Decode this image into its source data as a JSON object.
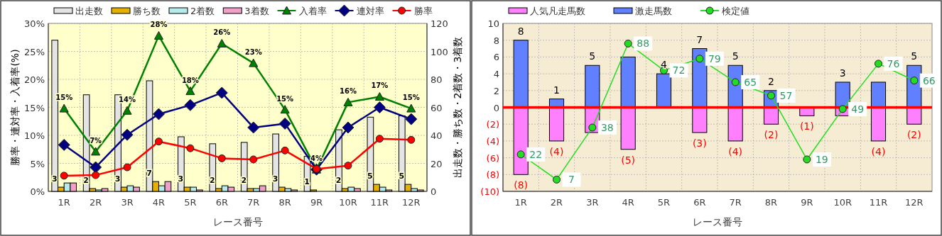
{
  "chart_data": [
    {
      "type": "bar",
      "xlabel": "レース番号",
      "ylabel": "勝率・連対率・入着率(%)",
      "y2label": "出走数・勝ち数・2着数・3着数",
      "categories": [
        "1R",
        "2R",
        "3R",
        "4R",
        "5R",
        "6R",
        "7R",
        "8R",
        "9R",
        "10R",
        "11R",
        "12R"
      ],
      "ylim": [
        0,
        30
      ],
      "yticks": [
        {
          "value": 0,
          "label": "0%"
        },
        {
          "value": 5,
          "label": "5%"
        },
        {
          "value": 10,
          "label": "10%"
        },
        {
          "value": 15,
          "label": "15%"
        },
        {
          "value": 20,
          "label": "20%"
        },
        {
          "value": 25,
          "label": "25%"
        },
        {
          "value": 30,
          "label": "30%"
        }
      ],
      "y2lim": [
        0,
        120
      ],
      "y2ticks": [
        0,
        20,
        40,
        60,
        80,
        100,
        120
      ],
      "grid": true,
      "legend": "top",
      "series": [
        {
          "name": "出走数",
          "axis": "y2",
          "color": "#e4e4e4",
          "values": [
            108,
            69,
            69,
            79,
            39,
            34,
            35,
            41,
            25,
            44,
            53,
            54
          ]
        },
        {
          "name": "勝ち数",
          "axis": "y2",
          "color": "#e6b000",
          "values": [
            3,
            2,
            3,
            7,
            3,
            2,
            2,
            3,
            1,
            2,
            5,
            5
          ],
          "value_labels": [
            "3",
            "2",
            "3",
            "7",
            "3",
            "2",
            "2",
            "3",
            "1",
            "2",
            "5",
            "5"
          ]
        },
        {
          "name": "2着数",
          "axis": "y2",
          "color": "#b4ecec",
          "values": [
            6,
            1,
            4,
            4,
            3,
            4,
            2,
            2,
            0,
            3,
            3,
            2
          ]
        },
        {
          "name": "3着数",
          "axis": "y2",
          "color": "#f0a0c8",
          "values": [
            6,
            2,
            3,
            7,
            1,
            3,
            4,
            1,
            0,
            2,
            1,
            1
          ]
        },
        {
          "name": "入着率",
          "type": "line",
          "marker": "triangle",
          "color": "#008000",
          "values": [
            14.8,
            7.1,
            14.4,
            27.8,
            17.9,
            26.4,
            22.9,
            14.6,
            3.9,
            15.9,
            16.9,
            14.8
          ],
          "value_labels": [
            "15%",
            "7%",
            "14%",
            "28%",
            "18%",
            "26%",
            "23%",
            "15%",
            "4%",
            "16%",
            "17%",
            "15%"
          ]
        },
        {
          "name": "連対率",
          "type": "line",
          "marker": "diamond",
          "color": "#000080",
          "values": [
            8.3,
            4.3,
            10.1,
            13.8,
            15.4,
            17.6,
            11.4,
            12.1,
            3.9,
            11.4,
            15.0,
            12.9
          ]
        },
        {
          "name": "勝率",
          "type": "line",
          "marker": "circle",
          "color": "#ff0000",
          "values": [
            2.8,
            2.9,
            4.3,
            8.9,
            7.7,
            5.9,
            5.7,
            7.3,
            4.0,
            4.6,
            9.4,
            9.2
          ]
        }
      ]
    },
    {
      "type": "bar",
      "stacked": true,
      "xlabel": "レース番号",
      "categories": [
        "1R",
        "2R",
        "3R",
        "4R",
        "5R",
        "6R",
        "7R",
        "8R",
        "9R",
        "10R",
        "11R",
        "12R"
      ],
      "ylim": [
        -10,
        10
      ],
      "yticks": [
        {
          "value": -10,
          "label": "(10)"
        },
        {
          "value": -8,
          "label": "(8)"
        },
        {
          "value": -6,
          "label": "(6)"
        },
        {
          "value": -4,
          "label": "(4)"
        },
        {
          "value": -2,
          "label": "(2)"
        },
        0,
        2,
        4,
        6,
        8,
        10
      ],
      "y2lim": [
        0,
        100
      ],
      "grid": true,
      "legend": "top",
      "ref_lines": [
        {
          "axis": "y",
          "value": 0,
          "color": "#ff0000"
        }
      ],
      "series": [
        {
          "name": "人気凡走馬数",
          "color": "#ff80ff",
          "values": [
            -8,
            -4,
            -3,
            -5,
            0,
            -3,
            -4,
            -2,
            -1,
            -1,
            -4,
            -2
          ],
          "value_labels": [
            "(8)",
            "(4)",
            null,
            "(5)",
            null,
            "(3)",
            "(4)",
            "(2)",
            "(1)",
            null,
            "(4)",
            "(2)"
          ]
        },
        {
          "name": "激走馬数",
          "color": "#6080ff",
          "values": [
            8,
            1,
            5,
            6,
            4,
            7,
            5,
            2,
            0,
            3,
            3,
            5
          ],
          "value_labels": [
            "8",
            "1",
            "5",
            null,
            "4",
            "7",
            "5",
            "2",
            null,
            "3",
            null,
            "5"
          ]
        },
        {
          "name": "検定値",
          "type": "line",
          "axis": "y2",
          "marker": "circle",
          "color": "#22dd22",
          "values": [
            22,
            7,
            38,
            88,
            72,
            79,
            65,
            57,
            19,
            49,
            76,
            66
          ],
          "value_labels": [
            "22",
            "7",
            "38",
            "88",
            "72",
            "79",
            "65",
            "57",
            "19",
            "49",
            "76",
            "66"
          ]
        }
      ]
    }
  ]
}
